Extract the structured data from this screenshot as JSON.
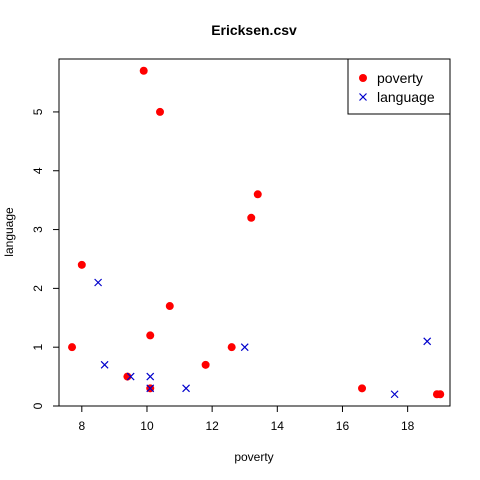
{
  "chart_data": {
    "type": "scatter",
    "title": "Ericksen.csv",
    "xlabel": "poverty",
    "ylabel": "language",
    "xlim": [
      7.3,
      19.3
    ],
    "ylim": [
      0,
      5.9
    ],
    "xticks": [
      8,
      10,
      12,
      14,
      16,
      18
    ],
    "yticks": [
      0,
      1,
      2,
      3,
      4,
      5
    ],
    "grid": false,
    "legend_position": "top-right",
    "series": [
      {
        "name": "poverty",
        "marker": "filled-circle",
        "color": "#ff0000",
        "points": [
          [
            7.7,
            1.0
          ],
          [
            8.0,
            2.4
          ],
          [
            9.4,
            0.5
          ],
          [
            9.9,
            5.7
          ],
          [
            10.1,
            1.2
          ],
          [
            10.1,
            0.3
          ],
          [
            10.4,
            5.0
          ],
          [
            10.7,
            1.7
          ],
          [
            11.8,
            0.7
          ],
          [
            12.6,
            1.0
          ],
          [
            13.2,
            3.2
          ],
          [
            13.4,
            3.6
          ],
          [
            16.6,
            0.3
          ],
          [
            18.9,
            0.2
          ],
          [
            19.0,
            0.2
          ]
        ]
      },
      {
        "name": "language",
        "marker": "cross",
        "color": "#0000cc",
        "points": [
          [
            8.5,
            2.1
          ],
          [
            8.7,
            0.7
          ],
          [
            9.5,
            0.5
          ],
          [
            10.1,
            0.5
          ],
          [
            10.1,
            0.3
          ],
          [
            11.2,
            0.3
          ],
          [
            13.0,
            1.0
          ],
          [
            17.6,
            0.2
          ],
          [
            18.6,
            1.1
          ]
        ]
      }
    ]
  }
}
